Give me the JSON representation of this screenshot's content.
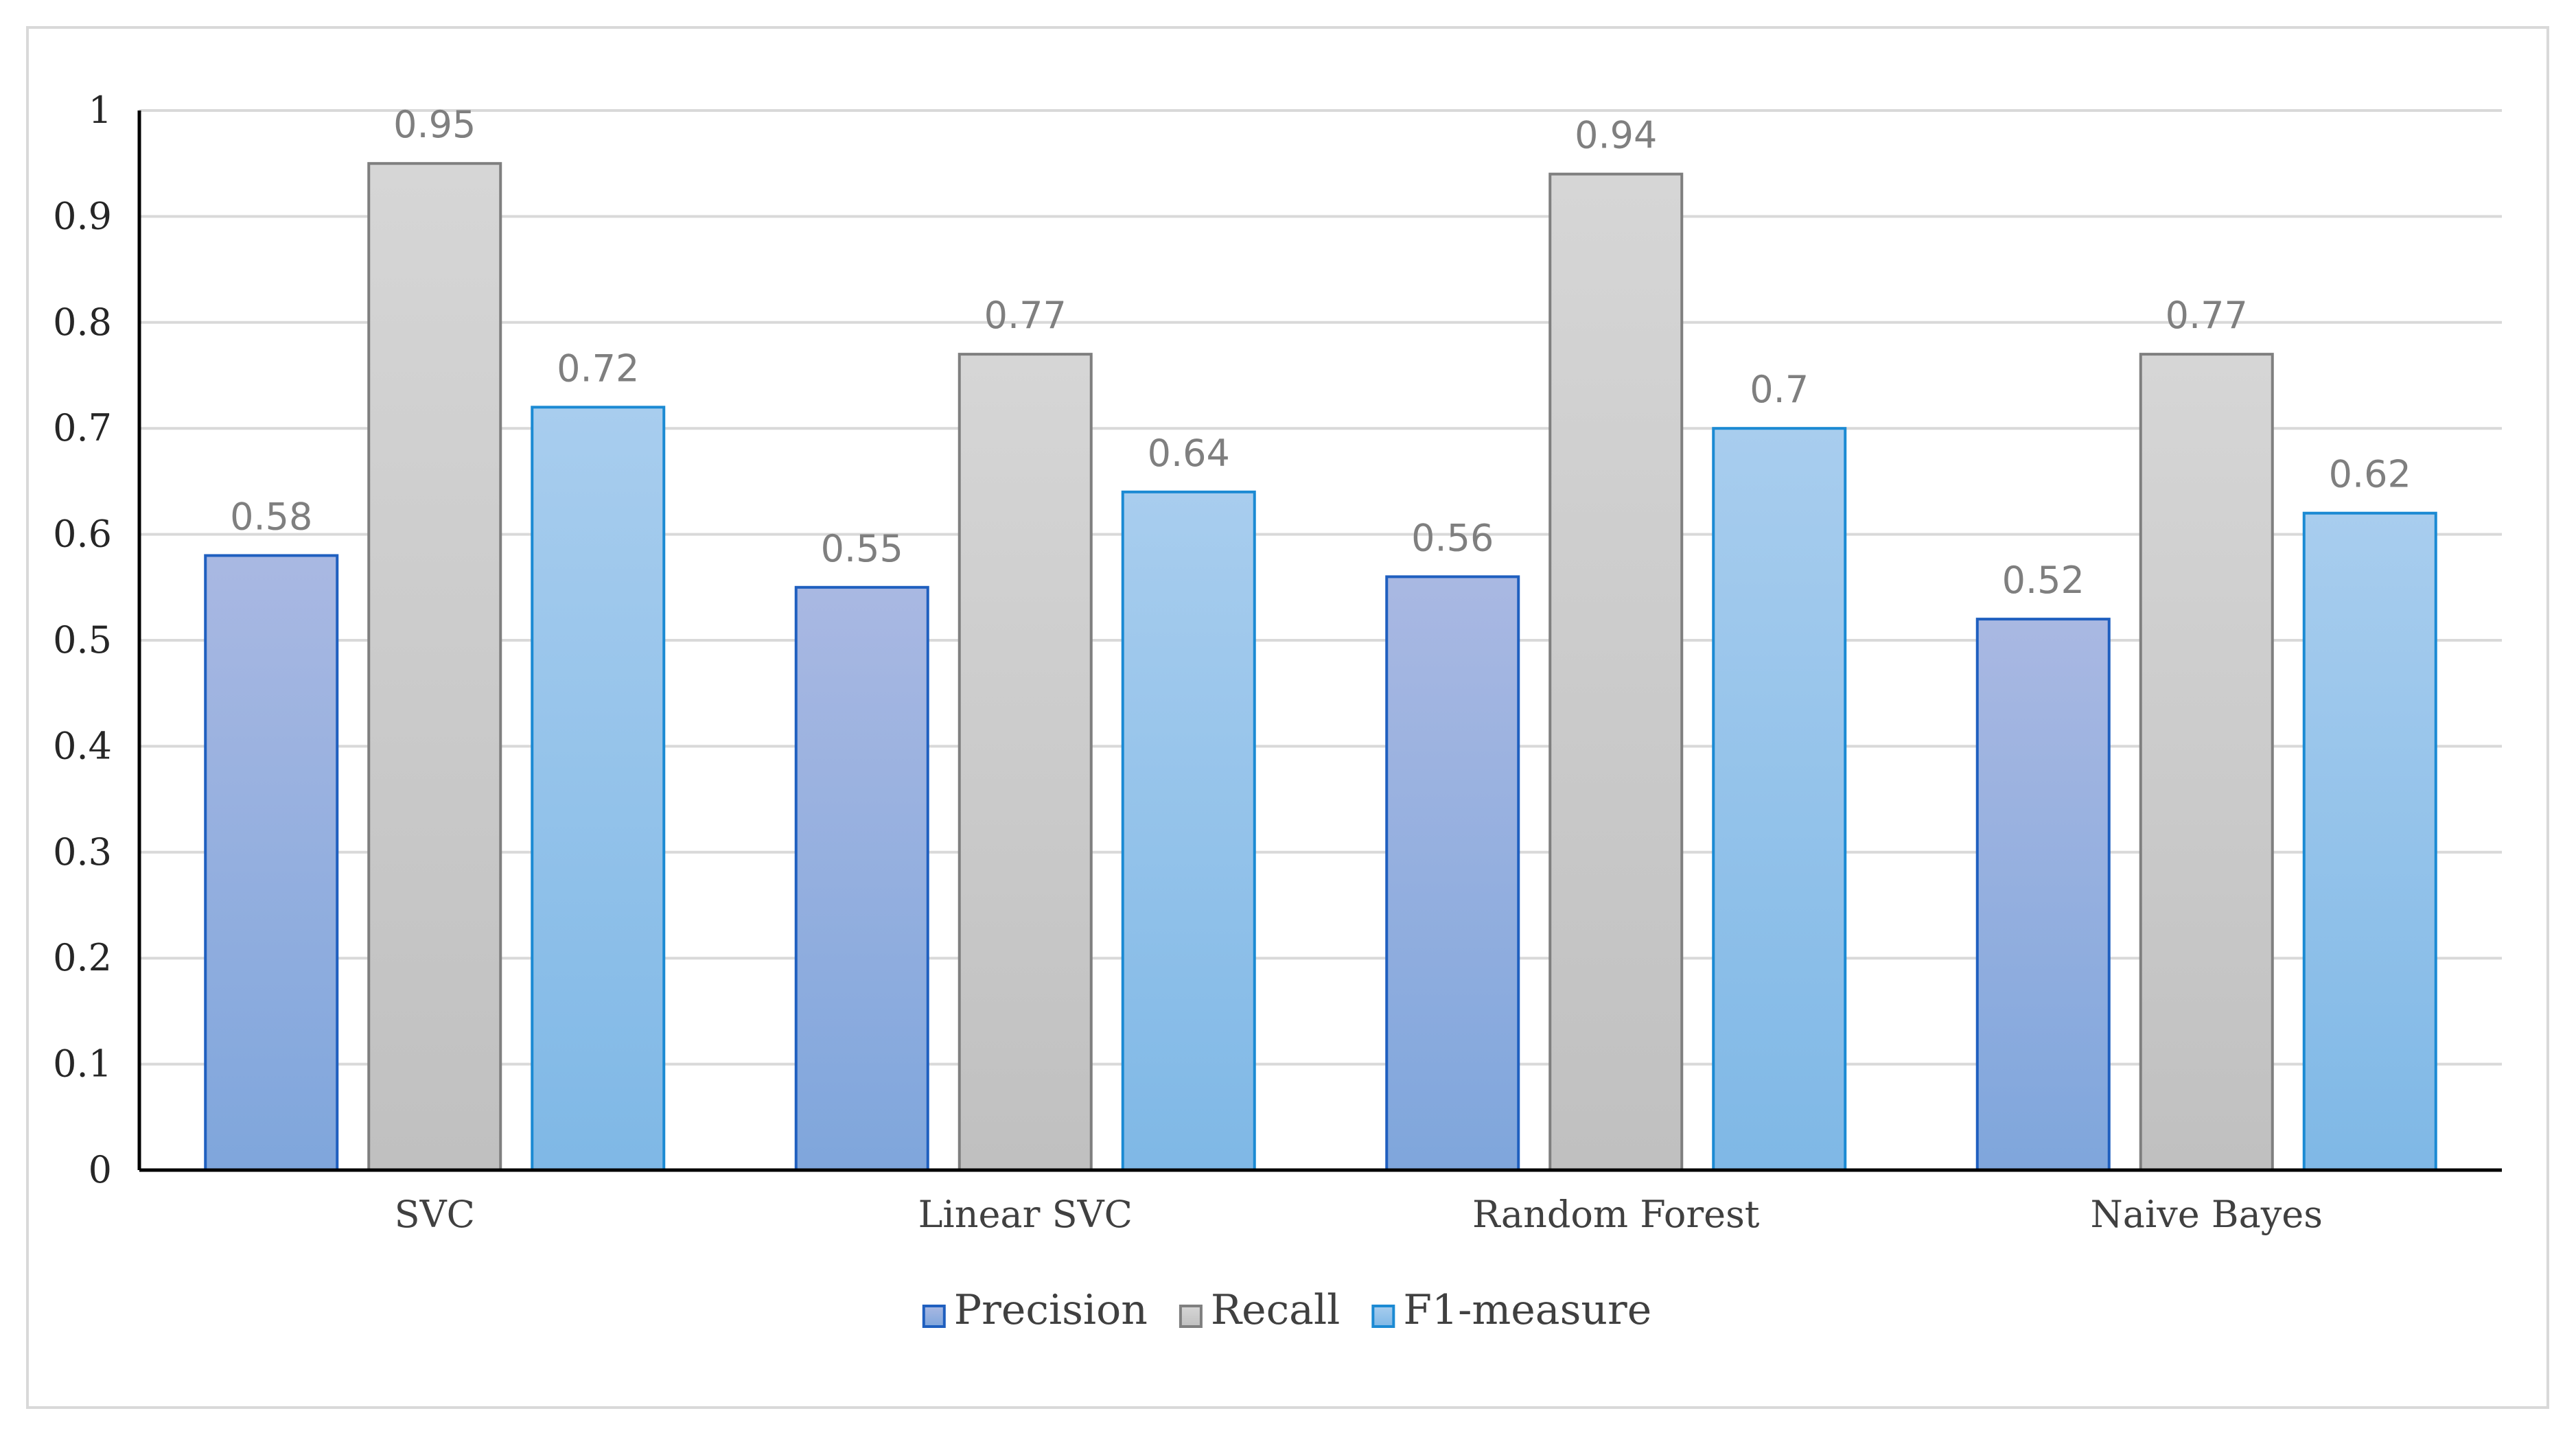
{
  "chart_data": {
    "type": "bar",
    "title": "",
    "xlabel": "",
    "ylabel": "",
    "categories": [
      "SVC",
      "Linear SVC",
      "Random Forest",
      "Naive Bayes"
    ],
    "series": [
      {
        "name": "Precision",
        "values": [
          0.58,
          0.55,
          0.56,
          0.52
        ],
        "labels": [
          "0.58",
          "0.55",
          "0.56",
          "0.52"
        ],
        "color": "#7fa6dc",
        "color_top": "#a9b8e2",
        "stroke": "#1f5fbf"
      },
      {
        "name": "Recall",
        "values": [
          0.95,
          0.77,
          0.94,
          0.77
        ],
        "labels": [
          "0.95",
          "0.77",
          "0.94",
          "0.77"
        ],
        "color": "#c0c0c0",
        "color_top": "#d6d6d6",
        "stroke": "#7f7f7f"
      },
      {
        "name": "F1-measure",
        "values": [
          0.72,
          0.64,
          0.7,
          0.62
        ],
        "labels": [
          "0.72",
          "0.64",
          "0.7",
          "0.62"
        ],
        "color": "#7fb8e6",
        "color_top": "#a8cdee",
        "stroke": "#1b8ad3"
      }
    ],
    "ylim": [
      0,
      1
    ],
    "yticks": [
      0,
      0.1,
      0.2,
      0.3,
      0.4,
      0.5,
      0.6,
      0.7,
      0.8,
      0.9,
      1
    ],
    "ytick_labels": [
      "0",
      "0.1",
      "0.2",
      "0.3",
      "0.4",
      "0.5",
      "0.6",
      "0.7",
      "0.8",
      "0.9",
      "1"
    ],
    "grid": true,
    "legend_position": "bottom",
    "data_labels": true,
    "gridline_color": "#d9d9d9",
    "axis_color": "#000000"
  }
}
